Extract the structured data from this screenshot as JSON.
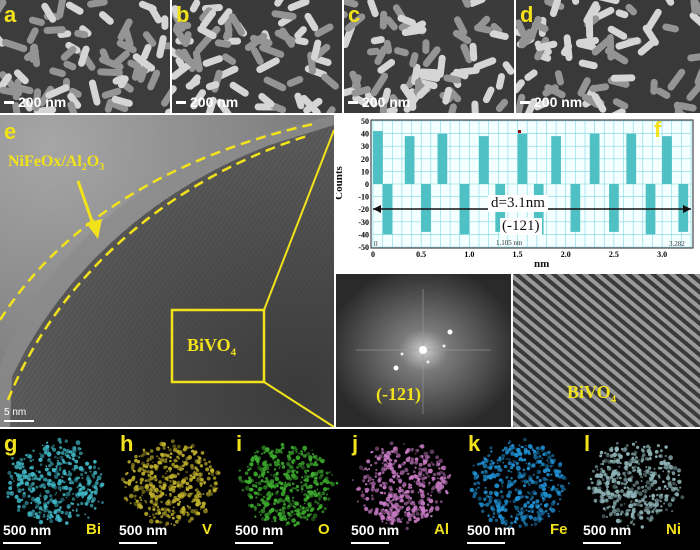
{
  "sem_panels": [
    {
      "label": "a",
      "scale": "200 nm"
    },
    {
      "label": "b",
      "scale": "200 nm"
    },
    {
      "label": "c",
      "scale": "200 nm"
    },
    {
      "label": "d",
      "scale": "200 nm"
    }
  ],
  "tem": {
    "label": "e",
    "coating": "NiFeOx/Al",
    "coating_sub1": "2",
    "coating_o": "O",
    "coating_sub2": "3",
    "core": "BiVO",
    "core_sub": "4",
    "scale": "5 nm"
  },
  "profile": {
    "label": "f",
    "ylabel": "Counts",
    "xlabel": "nm",
    "spacing": "d=3.1nm",
    "plane": "(-121)",
    "x_start_label": "0",
    "x_end_label": "3.282",
    "x_mid_label": "1.105 nm",
    "y_ticks": [
      "50",
      "40",
      "30",
      "20",
      "10",
      "0",
      "-10",
      "-20",
      "-30",
      "-40",
      "-50"
    ],
    "x_ticks": [
      "0",
      "0.5",
      "1.0",
      "1.5",
      "2.0",
      "2.5",
      "3.0"
    ]
  },
  "fft": {
    "plane": "(-121)"
  },
  "ifft": {
    "label": "BiVO",
    "sub": "4"
  },
  "eds": [
    {
      "label": "g",
      "scale": "500 nm",
      "element": "Bi",
      "color": "#3fb6c4"
    },
    {
      "label": "h",
      "scale": "500 nm",
      "element": "V",
      "color": "#bfb12a"
    },
    {
      "label": "i",
      "scale": "500 nm",
      "element": "O",
      "color": "#3eae2f"
    },
    {
      "label": "j",
      "scale": "500 nm",
      "element": "Al",
      "color": "#c77ac4"
    },
    {
      "label": "k",
      "scale": "500 nm",
      "element": "Fe",
      "color": "#1f8fd1"
    },
    {
      "label": "l",
      "scale": "500 nm",
      "element": "Ni",
      "color": "#8fb5b8"
    }
  ],
  "chart_data": {
    "type": "bar",
    "xlabel": "nm",
    "ylabel": "Counts",
    "xlim": [
      0,
      3.3
    ],
    "ylim": [
      -50,
      50
    ],
    "grid": true,
    "annotation": "d=3.1nm (-121)",
    "x": [
      0.05,
      0.15,
      0.38,
      0.55,
      0.72,
      0.95,
      1.15,
      1.32,
      1.55,
      1.72,
      1.9,
      2.1,
      2.3,
      2.5,
      2.68,
      2.88,
      3.05,
      3.22
    ],
    "values": [
      42,
      -40,
      38,
      -38,
      40,
      -40,
      38,
      -38,
      40,
      -40,
      38,
      -38,
      40,
      -38,
      40,
      -40,
      38,
      -38
    ]
  }
}
